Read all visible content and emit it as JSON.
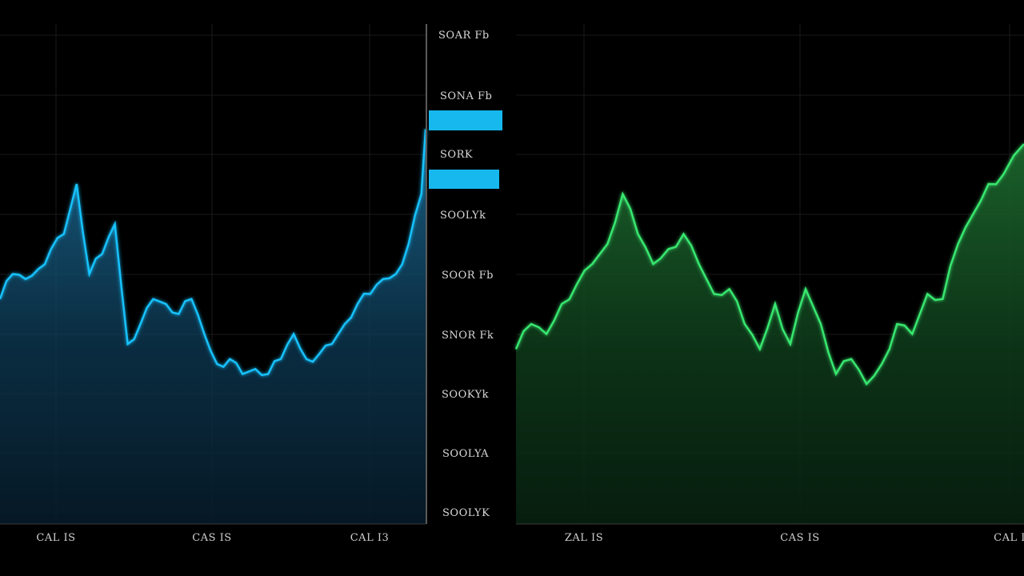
{
  "colors": {
    "background": "#000000",
    "grid": "#1a1a1a",
    "left_line": "#19c3ff",
    "right_line": "#39e870",
    "price_tag": "#16b8ee"
  },
  "y_axis_labels": [
    "SOAR Fb",
    "SONA Fb",
    "SORK",
    "SOOLYk",
    "SOOR Fb",
    "SNOR Fk",
    "SOOKYk",
    "SOOLYA",
    "SOOLYK"
  ],
  "price_tags": [
    "",
    ""
  ],
  "chart_data": [
    {
      "type": "area",
      "title": "",
      "xlabel": "",
      "ylabel": "",
      "x_tick_labels": [
        "CAL IS",
        "CAS IS",
        "CAL I3"
      ],
      "y_tick_labels": [
        "SOAR Fb",
        "SONA Fb",
        "SORK",
        "SOOLYk",
        "SOOR Fb",
        "SNOR Fk",
        "SOOKYk",
        "SOOLYA",
        "SOOLYK"
      ],
      "ylim": [
        0,
        100
      ],
      "grid": true,
      "series": [
        {
          "x": [
            0,
            3,
            6,
            9,
            12,
            15,
            18,
            21,
            24,
            27,
            30,
            33,
            36,
            39,
            42,
            45,
            48,
            51,
            54,
            57,
            60,
            63,
            66,
            69,
            72,
            75,
            78,
            81,
            84,
            87,
            90,
            93,
            96,
            99,
            100
          ],
          "values": [
            45,
            50,
            49,
            51,
            55,
            58,
            68,
            50,
            54,
            60,
            36,
            40,
            45,
            44,
            42,
            45,
            38,
            32,
            33,
            30,
            31,
            30,
            33,
            38,
            33,
            34,
            36,
            40,
            44,
            46,
            49,
            50,
            56,
            66,
            79
          ]
        }
      ]
    },
    {
      "type": "area",
      "title": "",
      "xlabel": "",
      "ylabel": "",
      "x_tick_labels": [
        "ZAL IS",
        "CAS IS",
        "CAL I"
      ],
      "ylim": [
        0,
        100
      ],
      "grid": true,
      "series": [
        {
          "x": [
            0,
            3,
            6,
            9,
            12,
            15,
            18,
            21,
            24,
            27,
            30,
            33,
            36,
            39,
            42,
            45,
            48,
            51,
            54,
            57,
            60,
            63,
            66,
            69,
            72,
            75,
            78,
            81,
            84,
            87,
            90,
            93,
            96,
            100
          ],
          "values": [
            35,
            40,
            38,
            44,
            48,
            52,
            56,
            66,
            58,
            52,
            55,
            58,
            52,
            46,
            47,
            40,
            35,
            44,
            36,
            47,
            40,
            30,
            33,
            28,
            32,
            40,
            38,
            46,
            45,
            56,
            62,
            68,
            70,
            76
          ]
        }
      ]
    }
  ]
}
